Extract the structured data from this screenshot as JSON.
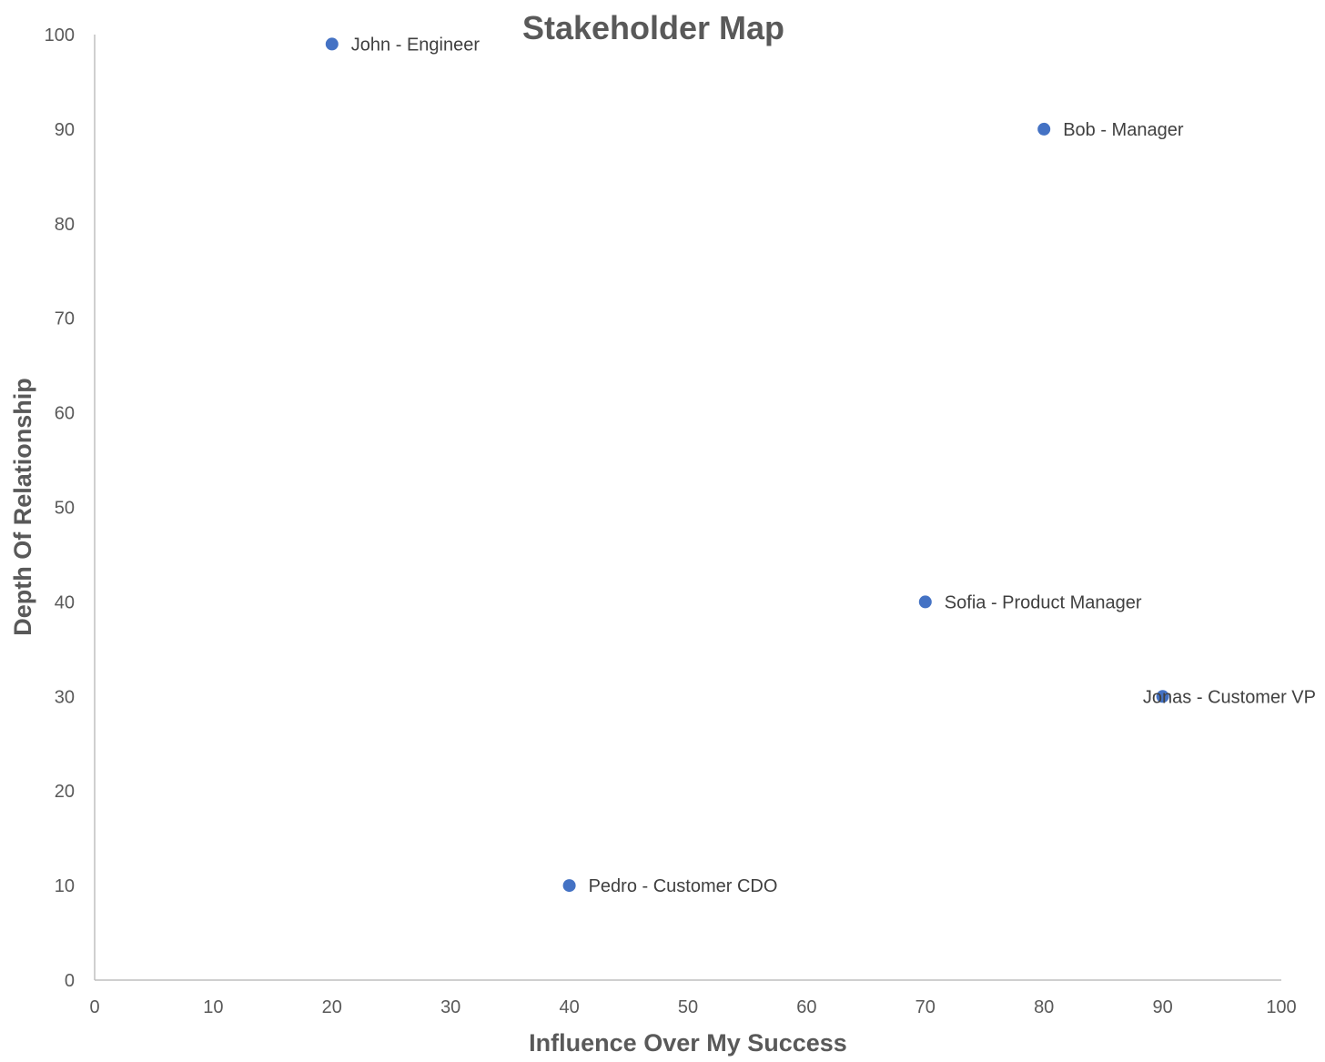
{
  "chart_data": {
    "type": "scatter",
    "title": "Stakeholder Map",
    "xlabel": "Influence Over My Success",
    "ylabel": "Depth Of Relationship",
    "xlim": [
      0,
      100
    ],
    "ylim": [
      0,
      100
    ],
    "xticks": [
      0,
      10,
      20,
      30,
      40,
      50,
      60,
      70,
      80,
      90,
      100
    ],
    "yticks": [
      0,
      10,
      20,
      30,
      40,
      50,
      60,
      70,
      80,
      90,
      100
    ],
    "grid": false,
    "legend": "none",
    "marker_color": "#4472c4",
    "points": [
      {
        "label": "John - Engineer",
        "x": 20,
        "y": 99
      },
      {
        "label": "Bob - Manager",
        "x": 80,
        "y": 90
      },
      {
        "label": "Sofia - Product Manager",
        "x": 70,
        "y": 40
      },
      {
        "label": "Jonas - Customer VP",
        "x": 90,
        "y": 30
      },
      {
        "label": "Pedro - Customer CDO",
        "x": 40,
        "y": 10
      }
    ]
  }
}
